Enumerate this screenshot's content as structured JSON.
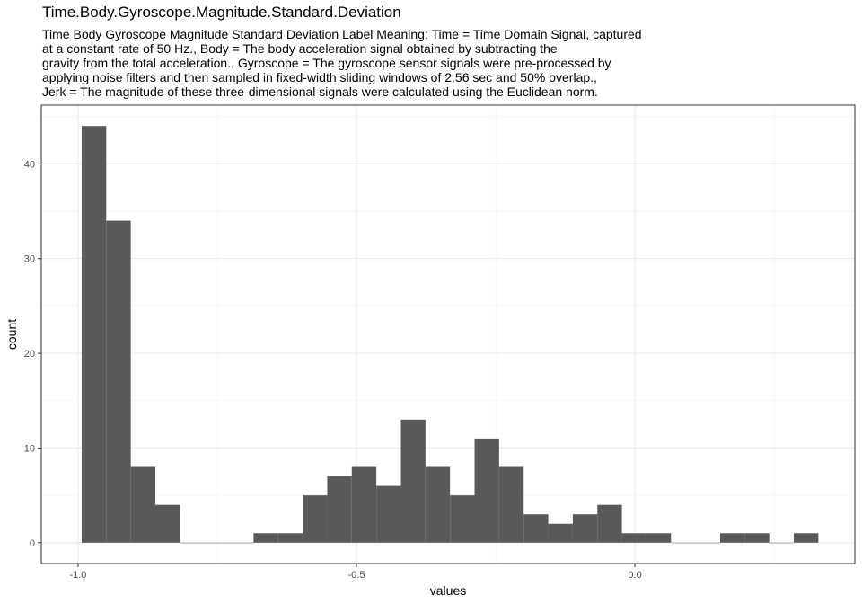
{
  "chart_data": {
    "type": "histogram",
    "title": "Time.Body.Gyroscope.Magnitude.Standard.Deviation",
    "subtitle_lines": [
      "Time Body Gyroscope Magnitude Standard Deviation Label Meaning: Time = Time Domain Signal, captured",
      "at a constant rate of 50 Hz., Body = The body acceleration signal obtained by subtracting the",
      "gravity from the total acceleration., Gyroscope = The gyroscope sensor signals were pre-processed by",
      "applying noise filters and then sampled in fixed-width sliding windows of 2.56 sec and 50% overlap.,",
      "Jerk = The magnitude of these three-dimensional signals were calculated using the Euclidean norm."
    ],
    "xlabel": "values",
    "ylabel": "count",
    "xlim": [
      -1.066,
      0.395
    ],
    "ylim": [
      -2.2,
      46.2
    ],
    "x_ticks": [
      -1.0,
      -0.5,
      0.0
    ],
    "x_tick_labels": [
      "-1.0",
      "-0.5",
      "0.0"
    ],
    "y_ticks": [
      0,
      10,
      20,
      30,
      40
    ],
    "y_tick_labels": [
      "0",
      "10",
      "20",
      "30",
      "40"
    ],
    "grid": true,
    "bar_color": "#595959",
    "bins": [
      {
        "x0": -0.9935,
        "x1": -0.9494,
        "count": 44
      },
      {
        "x0": -0.9494,
        "x1": -0.9053,
        "count": 34
      },
      {
        "x0": -0.9053,
        "x1": -0.8612,
        "count": 8
      },
      {
        "x0": -0.8612,
        "x1": -0.8171,
        "count": 4
      },
      {
        "x0": -0.8171,
        "x1": -0.773,
        "count": 0
      },
      {
        "x0": -0.773,
        "x1": -0.7289,
        "count": 0
      },
      {
        "x0": -0.7289,
        "x1": -0.6848,
        "count": 0
      },
      {
        "x0": -0.6848,
        "x1": -0.6407,
        "count": 1
      },
      {
        "x0": -0.6407,
        "x1": -0.5966,
        "count": 1
      },
      {
        "x0": -0.5966,
        "x1": -0.5525,
        "count": 5
      },
      {
        "x0": -0.5525,
        "x1": -0.5084,
        "count": 7
      },
      {
        "x0": -0.5084,
        "x1": -0.4643,
        "count": 8
      },
      {
        "x0": -0.4643,
        "x1": -0.4202,
        "count": 6
      },
      {
        "x0": -0.4202,
        "x1": -0.3761,
        "count": 13
      },
      {
        "x0": -0.3761,
        "x1": -0.332,
        "count": 8
      },
      {
        "x0": -0.332,
        "x1": -0.2879,
        "count": 5
      },
      {
        "x0": -0.2879,
        "x1": -0.2438,
        "count": 11
      },
      {
        "x0": -0.2438,
        "x1": -0.1997,
        "count": 8
      },
      {
        "x0": -0.1997,
        "x1": -0.1556,
        "count": 3
      },
      {
        "x0": -0.1556,
        "x1": -0.1115,
        "count": 2
      },
      {
        "x0": -0.1115,
        "x1": -0.0674,
        "count": 3
      },
      {
        "x0": -0.0674,
        "x1": -0.0233,
        "count": 4
      },
      {
        "x0": -0.0233,
        "x1": 0.0208,
        "count": 1
      },
      {
        "x0": 0.0208,
        "x1": 0.0649,
        "count": 1
      },
      {
        "x0": 0.0649,
        "x1": 0.109,
        "count": 0
      },
      {
        "x0": 0.109,
        "x1": 0.1531,
        "count": 0
      },
      {
        "x0": 0.1531,
        "x1": 0.1972,
        "count": 1
      },
      {
        "x0": 0.1972,
        "x1": 0.2413,
        "count": 1
      },
      {
        "x0": 0.2413,
        "x1": 0.2854,
        "count": 0
      },
      {
        "x0": 0.2854,
        "x1": 0.3295,
        "count": 1
      }
    ]
  }
}
